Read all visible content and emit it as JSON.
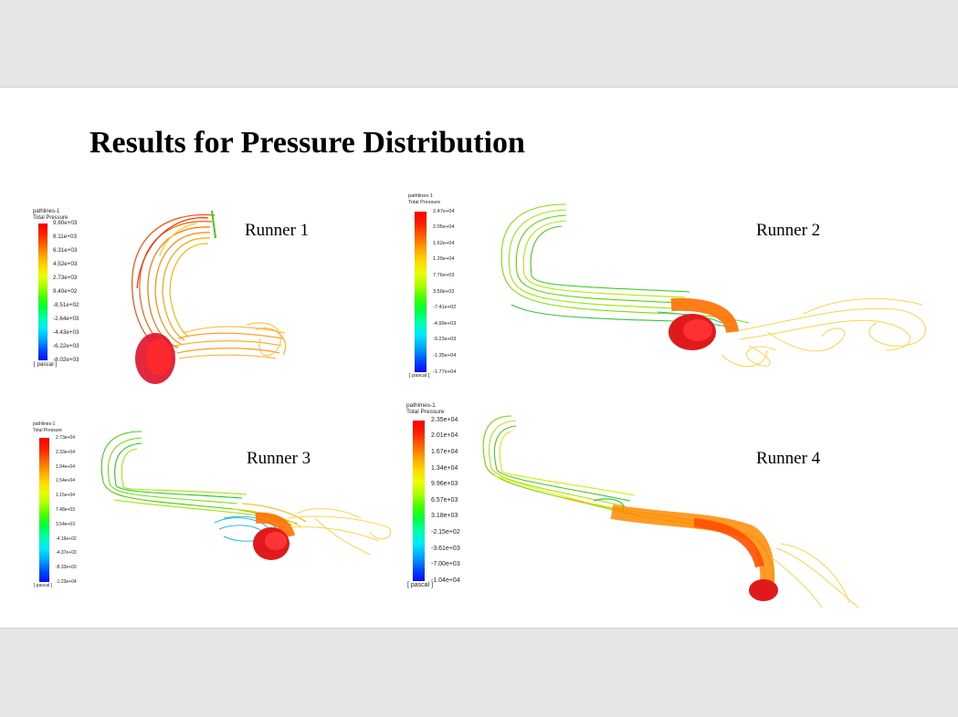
{
  "slide": {
    "title": "Results for Pressure Distribution"
  },
  "colors": {
    "scale": [
      "#0a0aff",
      "#0050ff",
      "#00a8ff",
      "#00e8ff",
      "#00ffb0",
      "#00ff40",
      "#40ff00",
      "#a8ff00",
      "#e8ff00",
      "#ffd800",
      "#ffa000",
      "#ff6000",
      "#ff2000",
      "#ff0000"
    ]
  },
  "runners": [
    {
      "label": "Runner 1",
      "legend": {
        "line1": "pathlines-1",
        "line2": "Total Pressure",
        "unit": "[ pascal ]",
        "ticks": [
          "9.90e+03",
          "8.11e+03",
          "6.31e+03",
          "4.52e+03",
          "2.73e+03",
          "9.40e+02",
          "-8.51e+02",
          "-2.64e+03",
          "-4.43e+03",
          "-6.22e+03",
          "-8.02e+03"
        ]
      }
    },
    {
      "label": "Runner 2",
      "legend": {
        "line1": "pathlines-1",
        "line2": "Total Pressure",
        "unit": "[ pascal ]",
        "ticks": [
          "2.47e+04",
          "2.05e+04",
          "1.62e+04",
          "1.20e+04",
          "7.76e+03",
          "3.50e+03",
          "-7.41e+02",
          "-4.99e+03",
          "-9.23e+03",
          "-1.35e+04",
          "-1.77e+04"
        ]
      }
    },
    {
      "label": "Runner 3",
      "legend": {
        "line1": "pathlines-1",
        "line2": "Total Pressure",
        "unit": "[ pascal ]",
        "ticks": [
          "2.73e+04",
          "2.33e+04",
          "1.94e+04",
          "1.54e+04",
          "1.15e+04",
          "7.48e+03",
          "3.54e+03",
          "-4.16e+02",
          "-4.37e+03",
          "-8.33e+03",
          "-1.23e+04"
        ]
      }
    },
    {
      "label": "Runner 4",
      "legend": {
        "line1": "pathlines-1",
        "line2": "Total Pressure",
        "unit": "[ pascal ]",
        "ticks": [
          "2.35e+04",
          "2.01e+04",
          "1.67e+04",
          "1.34e+04",
          "9.96e+03",
          "6.57e+03",
          "3.18e+03",
          "-2.15e+02",
          "-3.61e+03",
          "-7.00e+03",
          "-1.04e+04"
        ]
      }
    }
  ]
}
